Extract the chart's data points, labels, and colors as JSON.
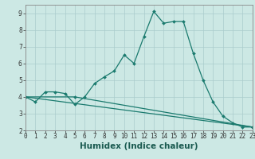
{
  "xlabel": "Humidex (Indice chaleur)",
  "bg_color": "#cce8e4",
  "grid_color": "#aacccc",
  "line_color": "#1a7a6e",
  "series": {
    "line1": {
      "x": [
        0,
        1,
        2,
        3,
        4,
        5,
        6,
        7,
        8,
        9,
        10,
        11,
        12,
        13,
        14,
        15,
        16,
        17,
        18,
        19,
        20,
        21,
        22,
        23
      ],
      "y": [
        4.0,
        3.7,
        4.3,
        4.3,
        4.2,
        3.55,
        4.0,
        4.8,
        5.2,
        5.55,
        6.5,
        6.0,
        7.6,
        9.1,
        8.4,
        8.5,
        8.5,
        6.6,
        5.0,
        3.7,
        2.85,
        2.45,
        2.2,
        2.2
      ]
    },
    "line2": {
      "x": [
        0,
        5,
        23
      ],
      "y": [
        4.0,
        4.0,
        2.2
      ]
    },
    "line3": {
      "x": [
        0,
        23
      ],
      "y": [
        4.0,
        2.2
      ]
    }
  },
  "xlim": [
    0,
    23
  ],
  "ylim": [
    2,
    9.5
  ],
  "yticks": [
    2,
    3,
    4,
    5,
    6,
    7,
    8,
    9
  ],
  "xticks": [
    0,
    1,
    2,
    3,
    4,
    5,
    6,
    7,
    8,
    9,
    10,
    11,
    12,
    13,
    14,
    15,
    16,
    17,
    18,
    19,
    20,
    21,
    22,
    23
  ],
  "tick_fontsize": 5.5,
  "label_fontsize": 7.5
}
